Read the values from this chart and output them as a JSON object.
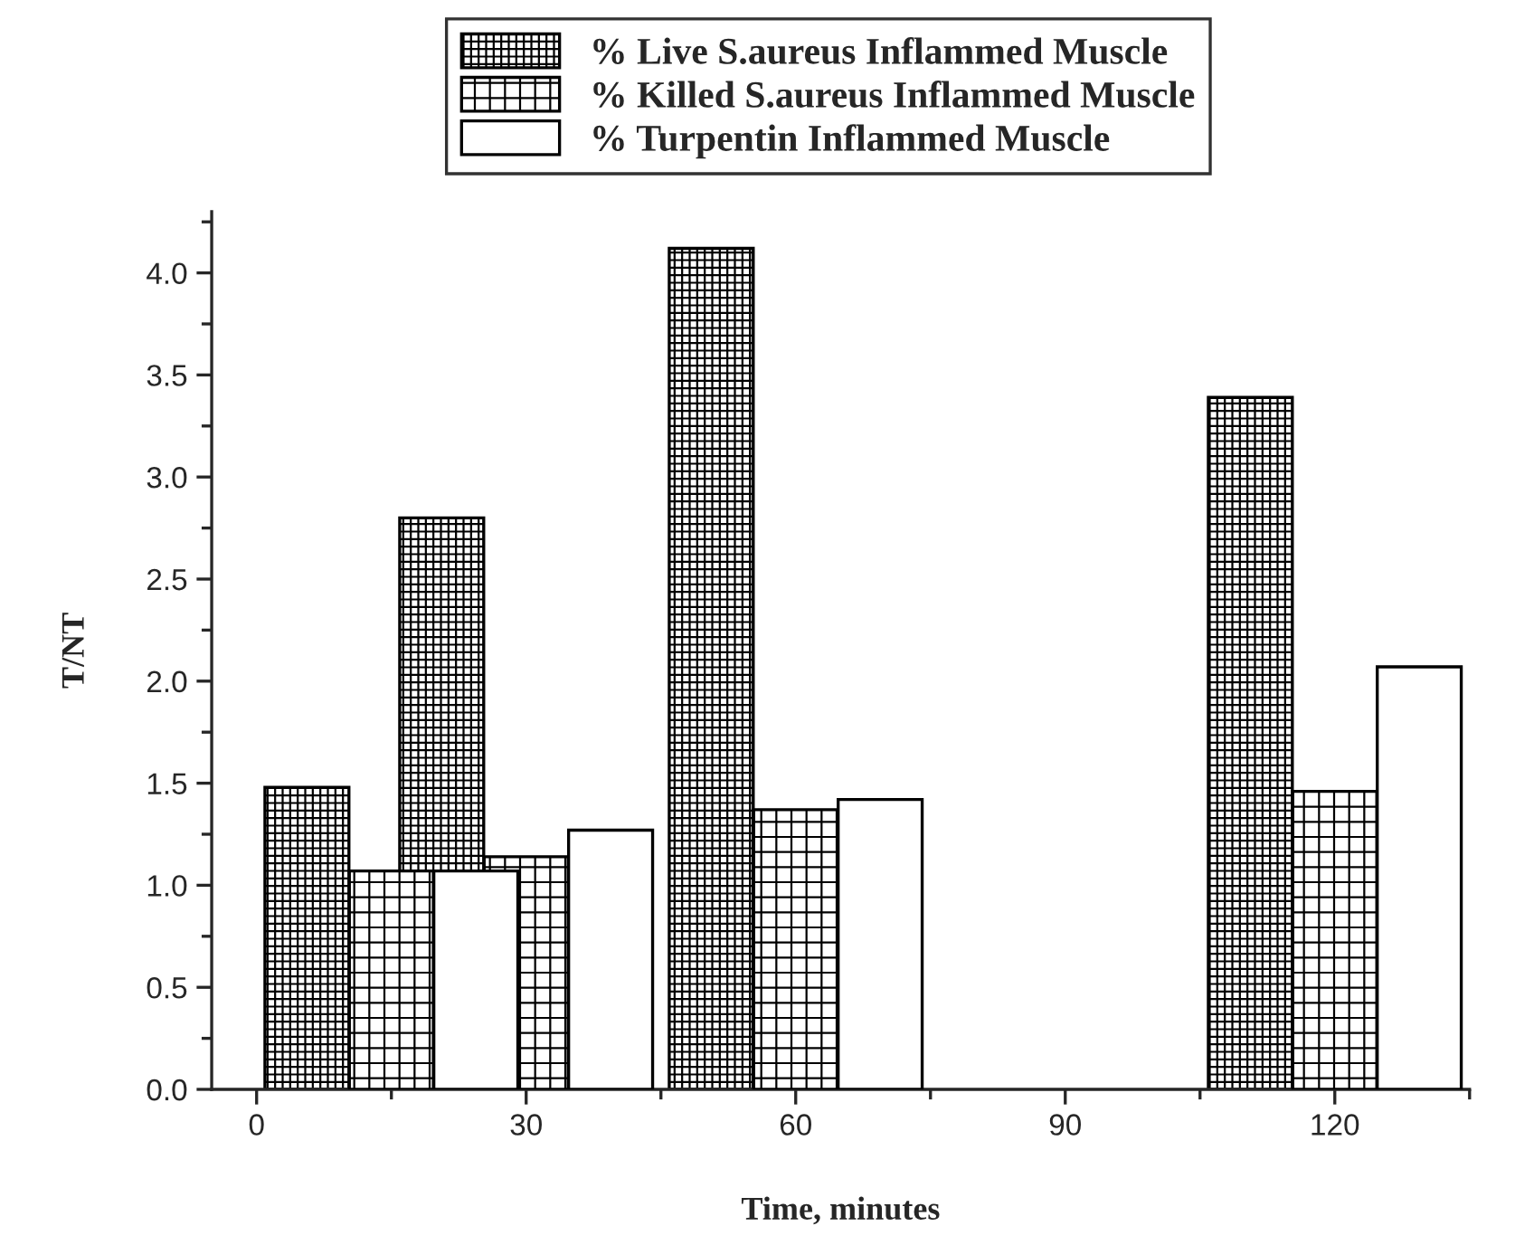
{
  "chart_data": {
    "type": "bar",
    "xlabel": "Time, minutes",
    "ylabel": "T/NT",
    "series": [
      {
        "name": "% Live S.aureus Inflammed Muscle",
        "color": "#000000",
        "x": [
          5.6,
          20.6,
          50.6,
          110.6
        ],
        "values": [
          1.48,
          2.8,
          4.12,
          3.39
        ]
      },
      {
        "name": "% Killed S.aureus Inflammed Muscle",
        "color": "#000000",
        "x": [
          15,
          30,
          60,
          120
        ],
        "values": [
          1.07,
          1.14,
          1.37,
          1.46
        ]
      },
      {
        "name": "% Turpentin Inflammed Muscle",
        "color": "#ffffff",
        "x": [
          24.4,
          39.4,
          69.4,
          129.4
        ],
        "values": [
          1.07,
          1.27,
          1.42,
          2.07
        ]
      }
    ],
    "xlim": [
      -5,
      135
    ],
    "xticks": [
      0,
      30,
      60,
      90,
      120
    ],
    "ylim": [
      0,
      4.3
    ],
    "yticks": [
      {
        "value": 0,
        "label": "0.0"
      },
      {
        "value": 0.5,
        "label": "0.5"
      },
      {
        "value": 1,
        "label": "1.0"
      },
      {
        "value": 1.5,
        "label": "1.5"
      },
      {
        "value": 2,
        "label": "2.0"
      },
      {
        "value": 2.5,
        "label": "2.5"
      },
      {
        "value": 3,
        "label": "3.0"
      },
      {
        "value": 3.5,
        "label": "3.5"
      },
      {
        "value": 4,
        "label": "4.0"
      }
    ],
    "grid": false,
    "legend": "top"
  }
}
